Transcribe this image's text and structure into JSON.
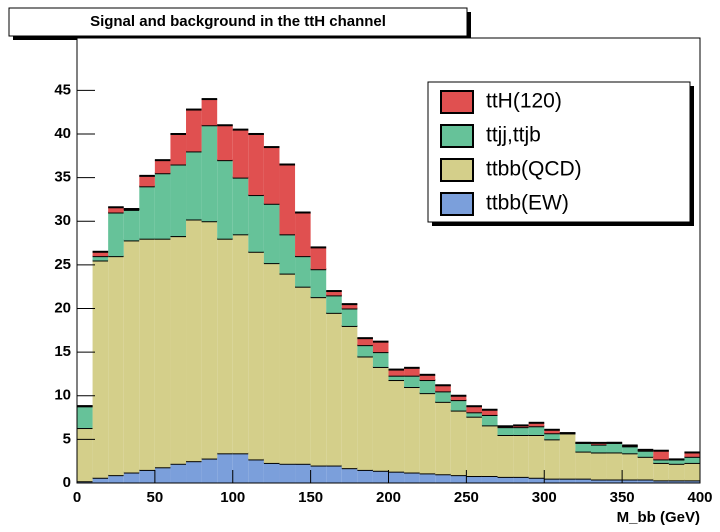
{
  "chart_data": {
    "type": "stacked-histogram",
    "title": "Signal and background in the ttH channel",
    "x_label": "M_bb (GeV)",
    "bins": [
      0,
      10,
      20,
      30,
      40,
      50,
      60,
      70,
      80,
      90,
      100,
      110,
      120,
      130,
      140,
      150,
      160,
      170,
      180,
      190,
      200,
      210,
      220,
      230,
      240,
      250,
      260,
      270,
      280,
      290,
      300,
      310,
      320,
      330,
      340,
      350,
      360,
      370,
      380,
      390,
      400
    ],
    "series": [
      {
        "name": "ttbb(EW)",
        "color": "#7b9fdb",
        "values": [
          0.2,
          0.6,
          0.9,
          1.2,
          1.5,
          1.8,
          2.2,
          2.5,
          2.8,
          3.4,
          3.4,
          2.7,
          2.3,
          2.2,
          2.2,
          2,
          2,
          1.7,
          1.5,
          1.4,
          1.3,
          1.2,
          1.1,
          1,
          0.9,
          0.8,
          0.8,
          0.7,
          0.7,
          0.6,
          0.5,
          0.5,
          0.5,
          0.4,
          0.4,
          0.4,
          0.4,
          0.3,
          0.3,
          0.3
        ]
      },
      {
        "name": "ttbb(QCD)",
        "color": "#d4cf8a",
        "values": [
          6.1,
          24.9,
          25.1,
          26.6,
          26.5,
          26.2,
          26.1,
          27.7,
          27.2,
          24.6,
          25.1,
          23.8,
          22.9,
          21.8,
          20.3,
          19.3,
          17.5,
          16.3,
          13,
          11.9,
          10.5,
          9.8,
          9.2,
          8.3,
          7.4,
          6.8,
          5.8,
          4.8,
          4.8,
          4.9,
          4.5,
          5.2,
          3.1,
          3.1,
          3.1,
          3.0,
          2.6,
          2.0,
          1.9,
          2.0
        ]
      },
      {
        "name": "ttjj,ttjb",
        "color": "#66c299",
        "values": [
          2.5,
          0.5,
          5,
          3.5,
          6,
          7.5,
          8.2,
          7.8,
          11,
          9,
          6.5,
          6.5,
          6.8,
          4.5,
          3.5,
          3.2,
          2,
          2,
          1.3,
          1.7,
          0.5,
          1.3,
          1.5,
          1.2,
          1.2,
          0.5,
          1.2,
          0.9,
          0.9,
          1,
          0.7,
          0,
          1,
          0.9,
          1.1,
          0.8,
          0.7,
          0.4,
          0.5,
          0.7
        ]
      },
      {
        "name": "ttH(120)",
        "color": "#e05050",
        "values": [
          0,
          0.5,
          0.6,
          0.1,
          1.2,
          1.5,
          3.5,
          4.8,
          3,
          4,
          5.5,
          7,
          6.5,
          8,
          5,
          2.5,
          0.5,
          0.5,
          0.8,
          1.2,
          0.7,
          0.9,
          0.6,
          0.7,
          0.5,
          0.7,
          0.6,
          0.1,
          0.2,
          0.4,
          0.4,
          0,
          0,
          0.2,
          0,
          0.1,
          0.1,
          1.0,
          0,
          0.5
        ]
      }
    ],
    "xlim": [
      0,
      400
    ],
    "xticks": [
      0,
      50,
      100,
      150,
      200,
      250,
      300,
      350,
      400
    ],
    "ylim": [
      0,
      51
    ],
    "yticks": [
      0,
      5,
      10,
      15,
      20,
      25,
      30,
      35,
      40,
      45
    ],
    "legend": "top-right"
  }
}
